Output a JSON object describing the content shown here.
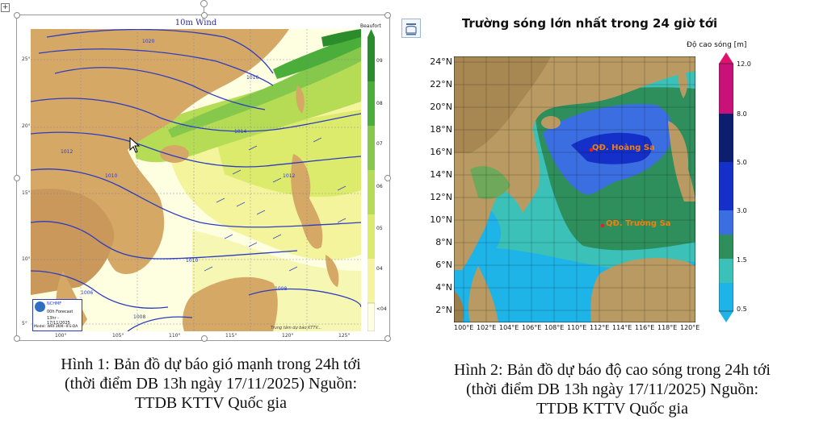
{
  "figure1": {
    "map_title": "10m Wind",
    "scale_title": "Beaufort",
    "scale_levels": [
      "09",
      "08",
      "07",
      "06",
      "05",
      "04",
      "<04"
    ],
    "lat_labels": [
      "25°",
      "20°",
      "15°",
      "10°",
      "5°"
    ],
    "lon_labels": [
      "100°",
      "105°",
      "110°",
      "115°",
      "120°",
      "125°"
    ],
    "isobar_labels": [
      "1020",
      "1016",
      "1014",
      "1012",
      "1010",
      "1012",
      "1010",
      "1008",
      "1006",
      "1008"
    ],
    "stamp": {
      "org": "NCHMF",
      "forecast": "00h Forecast",
      "time": "13hr - 17/11/2025",
      "model": "Model: WRF3KM--IFS-DA"
    },
    "footer_note": "Trung tâm dự báo KTTV...",
    "caption_lines": [
      "Hình 1: Bản đồ dự báo gió mạnh trong 24h tới",
      "(thời điểm DB 13h ngày 17/11/2025) Nguồn:",
      "TTDB KTTV Quốc gia"
    ],
    "colors": {
      "land": "#d6a866",
      "sea_low": "#fefee0",
      "level_04": "#f4f49c",
      "level_05": "#dceb6c",
      "level_06": "#b6dc56",
      "level_07": "#86c84c",
      "level_08": "#4cae3a",
      "level_09": "#2b8c2b",
      "isobar": "#2d3cc0"
    }
  },
  "figure2": {
    "title": "Trường sóng lớn nhất trong 24 giờ tới",
    "colorbar_title": "Độ cao sóng [m]",
    "colorbar_ticks": [
      "12.0",
      "8.0",
      "5.0",
      "3.0",
      "1.5",
      "0.5"
    ],
    "lat_labels": [
      "24°N",
      "22°N",
      "20°N",
      "18°N",
      "16°N",
      "14°N",
      "12°N",
      "10°N",
      "8°N",
      "6°N",
      "4°N",
      "2°N"
    ],
    "lon_labels": [
      "100°E",
      "102°E",
      "104°E",
      "106°E",
      "108°E",
      "110°E",
      "112°E",
      "114°E",
      "116°E",
      "118°E",
      "120°E"
    ],
    "place_hoang_sa": "QĐ. Hoàng Sa",
    "place_truong_sa": "QĐ. Trường Sa",
    "caption_lines": [
      "Hình 2: Bản đồ dự báo độ cao sóng trong 24h tới",
      "(thời điểm DB 13h ngày 17/11/2025) Nguồn:",
      "TTDB KTTV Quốc gia"
    ],
    "colors": {
      "c_0_5": "#1fb4e8",
      "c_1_5": "#3cc1b8",
      "c_3_0": "#2e8f5c",
      "c_5_0": "#3b6ee0",
      "c_8_0": "#1530c8",
      "c_12_0": "#0c1f6e",
      "c_high": "#e0126e",
      "c_top": "#c8127a",
      "land": "#b89a62",
      "label": "#f07f10"
    }
  }
}
